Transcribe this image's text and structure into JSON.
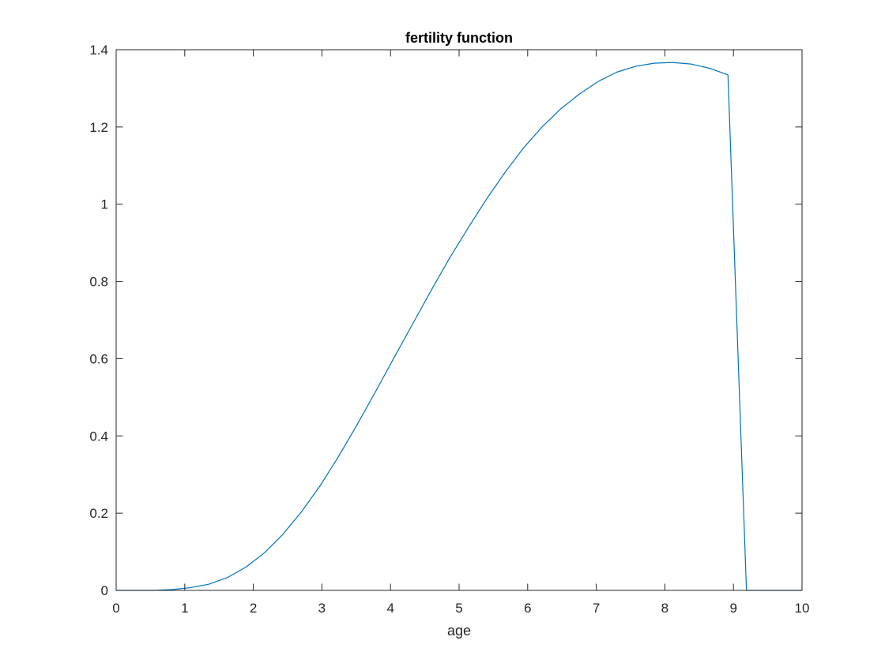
{
  "chart_data": {
    "type": "line",
    "title": "fertility function",
    "xlabel": "age",
    "ylabel": "",
    "xlim": [
      0,
      10
    ],
    "ylim": [
      0,
      1.4
    ],
    "xticks": [
      0,
      1,
      2,
      3,
      4,
      5,
      6,
      7,
      8,
      9,
      10
    ],
    "xtick_labels": [
      "0",
      "1",
      "2",
      "3",
      "4",
      "5",
      "6",
      "7",
      "8",
      "9",
      "10"
    ],
    "yticks": [
      0,
      0.2,
      0.4,
      0.6,
      0.8,
      1,
      1.2,
      1.4
    ],
    "ytick_labels": [
      "0",
      "0.2",
      "0.4",
      "0.6",
      "0.8",
      "1",
      "1.2",
      "1.4"
    ],
    "grid": false,
    "box": true,
    "series": [
      {
        "color": "#0072BD",
        "x": [
          0,
          0.27,
          0.54,
          0.81,
          1.08,
          1.35,
          1.62,
          1.89,
          2.16,
          2.43,
          2.7,
          2.97,
          3.24,
          3.51,
          3.78,
          4.05,
          4.32,
          4.59,
          4.86,
          5.14,
          5.41,
          5.68,
          5.95,
          6.22,
          6.49,
          6.76,
          7.03,
          7.3,
          7.57,
          7.84,
          8.11,
          8.38,
          8.65,
          8.92,
          9.19,
          9.46,
          9.73,
          10
        ],
        "y": [
          0,
          0,
          0,
          0.002,
          0.007,
          0.016,
          0.033,
          0.06,
          0.097,
          0.145,
          0.203,
          0.27,
          0.346,
          0.428,
          0.514,
          0.602,
          0.689,
          0.776,
          0.86,
          0.941,
          1.016,
          1.085,
          1.148,
          1.202,
          1.248,
          1.286,
          1.318,
          1.342,
          1.357,
          1.365,
          1.367,
          1.363,
          1.352,
          1.335,
          0,
          0,
          0,
          0
        ]
      }
    ]
  }
}
